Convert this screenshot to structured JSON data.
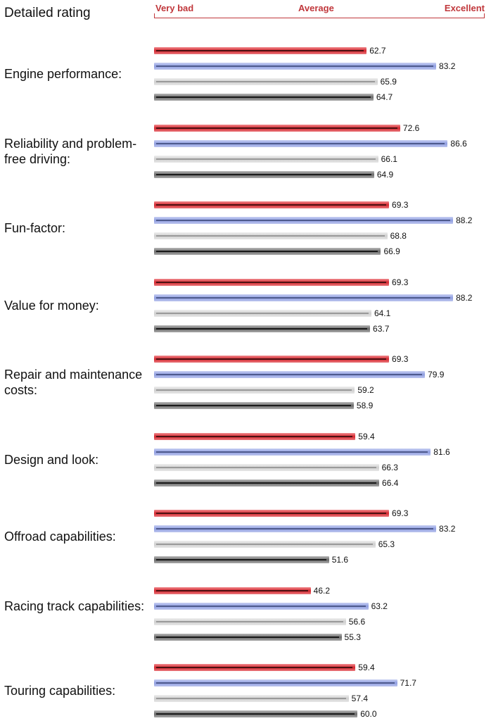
{
  "chart_data": {
    "type": "bar",
    "orientation": "horizontal",
    "title": "Detailed rating",
    "scale_labels": {
      "low": "Very bad",
      "mid": "Average",
      "high": "Excellent"
    },
    "xlim": [
      0,
      100
    ],
    "series": [
      {
        "name": "series-red",
        "color": "#d4252d"
      },
      {
        "name": "series-blue",
        "color": "#8e9de0"
      },
      {
        "name": "series-light-gray",
        "color": "#cfcfcf"
      },
      {
        "name": "series-dark-gray",
        "color": "#6a6a6a"
      }
    ],
    "categories": [
      {
        "label": "Engine performance:",
        "values": [
          "62.7",
          "83.2",
          "65.9",
          "64.7"
        ]
      },
      {
        "label": "Reliability and problem-free driving:",
        "values": [
          "72.6",
          "86.6",
          "66.1",
          "64.9"
        ]
      },
      {
        "label": "Fun-factor:",
        "values": [
          "69.3",
          "88.2",
          "68.8",
          "66.9"
        ]
      },
      {
        "label": "Value for money:",
        "values": [
          "69.3",
          "88.2",
          "64.1",
          "63.7"
        ]
      },
      {
        "label": "Repair and maintenance costs:",
        "values": [
          "69.3",
          "79.9",
          "59.2",
          "58.9"
        ]
      },
      {
        "label": "Design and look:",
        "values": [
          "59.4",
          "81.6",
          "66.3",
          "66.4"
        ]
      },
      {
        "label": "Offroad capabilities:",
        "values": [
          "69.3",
          "83.2",
          "65.3",
          "51.6"
        ]
      },
      {
        "label": "Racing track capabilities:",
        "values": [
          "46.2",
          "63.2",
          "56.6",
          "55.3"
        ]
      },
      {
        "label": "Touring capabilities:",
        "values": [
          "59.4",
          "71.7",
          "57.4",
          "60.0"
        ]
      }
    ]
  }
}
